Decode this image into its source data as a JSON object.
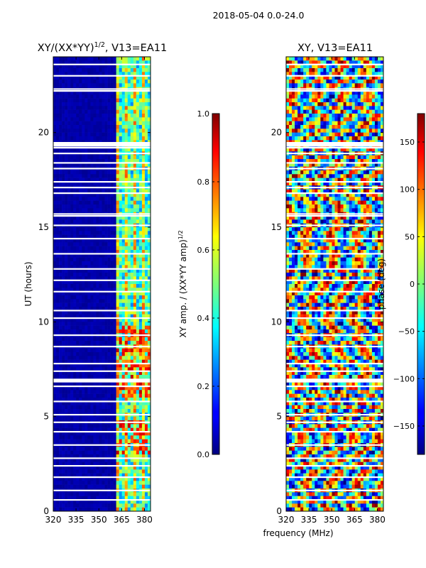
{
  "figure_title": "2018-05-04 0.0-24.0",
  "shared_xlabel": "frequency (MHz)",
  "chart_data": [
    {
      "type": "heatmap",
      "title_main": "XY/(XX*YY)",
      "title_sup": "1/2",
      "title_tail": ", V13=EA11",
      "ylabel": "UT (hours)",
      "xlim": [
        320,
        384
      ],
      "ylim": [
        0,
        24
      ],
      "xticks": [
        320,
        335,
        350,
        365,
        380
      ],
      "xticklabels": [
        "320",
        "335",
        "350",
        "365",
        "380"
      ],
      "yticks": [
        0,
        5,
        10,
        15,
        20
      ],
      "yticklabels": [
        "0",
        "5",
        "10",
        "15",
        "20"
      ],
      "colorbar": {
        "label_main": "XY amp. / (XX*YY amp)",
        "label_sup": "1/2",
        "vmin": 0.0,
        "vmax": 1.0,
        "ticks": [
          0.0,
          0.2,
          0.4,
          0.6,
          0.8,
          1.0
        ],
        "ticklabels": [
          "0.0",
          "0.2",
          "0.4",
          "0.6",
          "0.8",
          "1.0"
        ]
      },
      "band_start_mhz": 361,
      "gap_hours": [
        0.6,
        1.1,
        1.8,
        2.4,
        2.8,
        3.5,
        4.2,
        4.7,
        5.1,
        5.8,
        6.6,
        7.4,
        7.8,
        8.7,
        9.3,
        10.2,
        10.6,
        11.6,
        12.2,
        12.8,
        13.6,
        14.4,
        15.1,
        15.6,
        15.7,
        16.8,
        17.1,
        17.4,
        18.1,
        18.4,
        18.9,
        19.2,
        19.3,
        22.2,
        22.3,
        23.0,
        23.6
      ]
    },
    {
      "type": "heatmap",
      "title_main": "XY, V13=EA11",
      "ylabel": "phase (deg)",
      "xlim": [
        320,
        384
      ],
      "ylim": [
        0,
        24
      ],
      "xticks": [
        320,
        335,
        350,
        365,
        380
      ],
      "xticklabels": [
        "320",
        "335",
        "350",
        "365",
        "380"
      ],
      "yticks": [
        0,
        5,
        10,
        15,
        20
      ],
      "yticklabels": [
        "0",
        "5",
        "10",
        "15",
        "20"
      ],
      "colorbar": {
        "label_main": "phase (deg)",
        "vmin": -180,
        "vmax": 180,
        "ticks": [
          -150,
          -100,
          -50,
          0,
          50,
          100,
          150
        ],
        "ticklabels": [
          "−150",
          "−100",
          "−50",
          "0",
          "50",
          "100",
          "150"
        ]
      },
      "gap_hours": [
        0.6,
        1.1,
        1.8,
        2.4,
        2.8,
        3.5,
        4.2,
        4.7,
        5.1,
        5.8,
        6.6,
        7.4,
        7.8,
        8.7,
        9.3,
        10.2,
        10.6,
        11.6,
        12.2,
        12.8,
        13.6,
        14.4,
        15.1,
        15.6,
        15.7,
        16.8,
        17.1,
        17.4,
        18.1,
        18.4,
        18.9,
        19.2,
        19.3,
        22.2,
        22.3,
        23.0,
        23.6
      ]
    }
  ]
}
